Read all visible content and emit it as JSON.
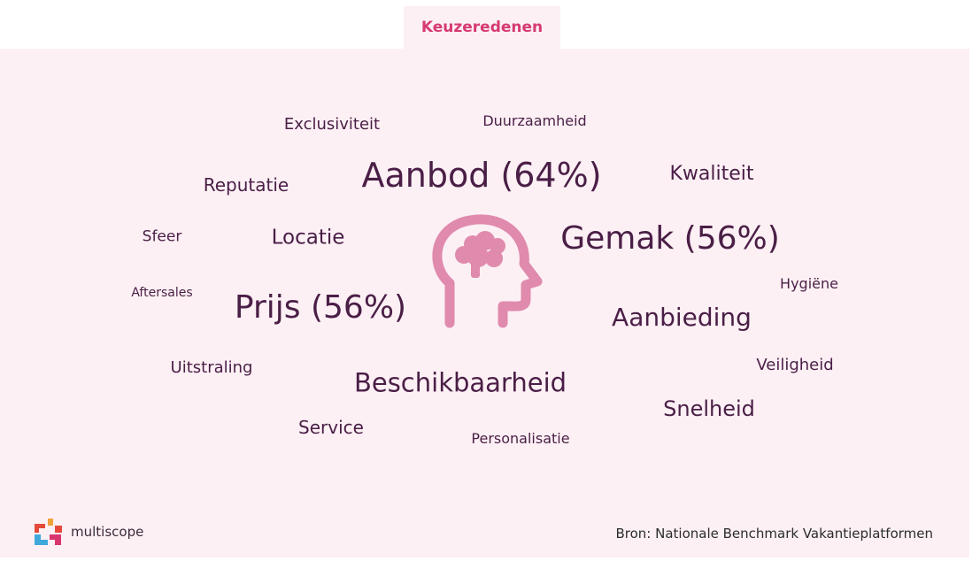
{
  "tab": {
    "label": "Keuzeredenen"
  },
  "words": {
    "exclusiviteit": "Exclusiviteit",
    "duurzaamheid": "Duurzaamheid",
    "aanbod": "Aanbod (64%)",
    "kwaliteit": "Kwaliteit",
    "reputatie": "Reputatie",
    "sfeer": "Sfeer",
    "locatie": "Locatie",
    "gemak": "Gemak (56%)",
    "aftersales": "Aftersales",
    "prijs": "Prijs (56%)",
    "hygiene": "Hygiëne",
    "aanbieding": "Aanbieding",
    "uitstraling": "Uitstraling",
    "beschikbaarheid": "Beschikbaarheid",
    "veiligheid": "Veiligheid",
    "snelheid": "Snelheid",
    "service": "Service",
    "personalisatie": "Personalisatie"
  },
  "icon": {
    "name": "head-brain-icon",
    "color": "#e08aad"
  },
  "logo": {
    "text": "multiscope",
    "name": "multiscope-logo-icon"
  },
  "footer": {
    "source": "Bron: Nationale Benchmark Vakantieplatformen"
  },
  "colors": {
    "accent": "#d63a72",
    "word": "#4a1e46",
    "panel": "#fcf0f4"
  }
}
